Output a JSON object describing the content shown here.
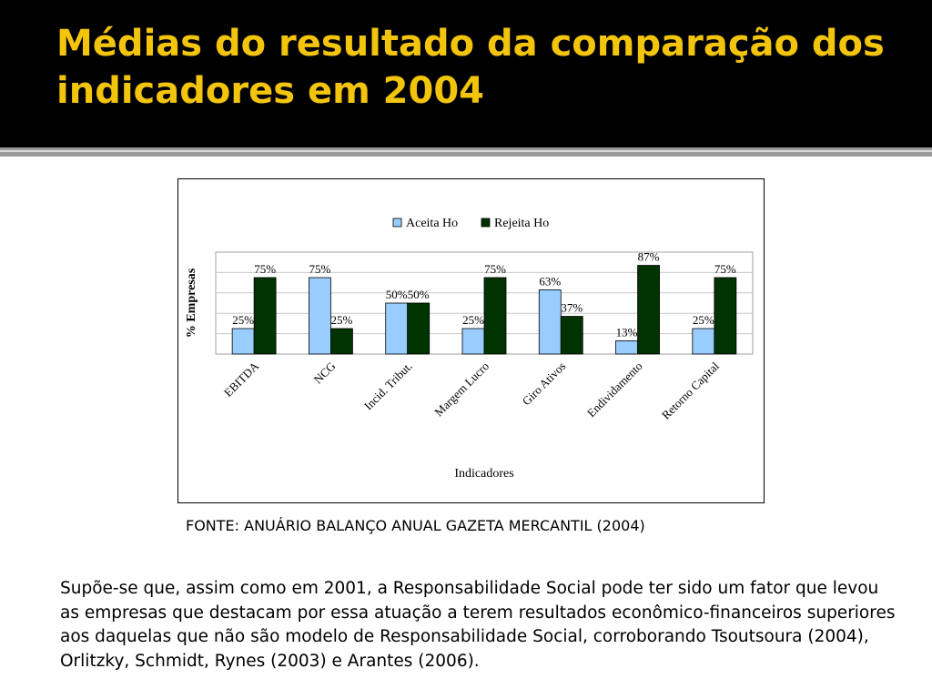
{
  "slide": {
    "title": "Médias do resultado da comparação dos indicadores em 2004",
    "source": "FONTE: ANUÁRIO BALANÇO ANUAL GAZETA MERCANTIL (2004)",
    "body": "Supõe-se que, assim como em 2001, a Responsabilidade Social pode ter sido um fator que levou as empresas que destacam por essa atuação a terem resultados econômico-financeiros superiores aos daquelas que não são modelo de Responsabilidade Social, corroborando Tsoutsoura (2004), Orlitzky, Schmidt, Rynes (2003) e Arantes (2006)."
  },
  "chart_data": {
    "type": "bar",
    "title": "",
    "xlabel": "Indicadores",
    "ylabel": "% Empresas",
    "ylim": [
      0,
      100
    ],
    "grid": true,
    "legend_position": "top",
    "categories": [
      "EBITDA",
      "NCG",
      "Incid. Tribut.",
      "Margem Lucro",
      "Giro Ativos",
      "Endividamento",
      "Retorno Capital"
    ],
    "series": [
      {
        "name": "Aceita Ho",
        "color": "#99ccff",
        "values": [
          25,
          75,
          50,
          25,
          63,
          13,
          25
        ],
        "labels": [
          "25%",
          "75%",
          "50%",
          "25%",
          "63%",
          "13%",
          "25%"
        ]
      },
      {
        "name": "Rejeita Ho",
        "color": "#003300",
        "values": [
          75,
          25,
          50,
          75,
          37,
          87,
          75
        ],
        "labels": [
          "75%",
          "25%",
          "50%",
          "75%",
          "37%",
          "87%",
          "75%"
        ]
      }
    ]
  }
}
